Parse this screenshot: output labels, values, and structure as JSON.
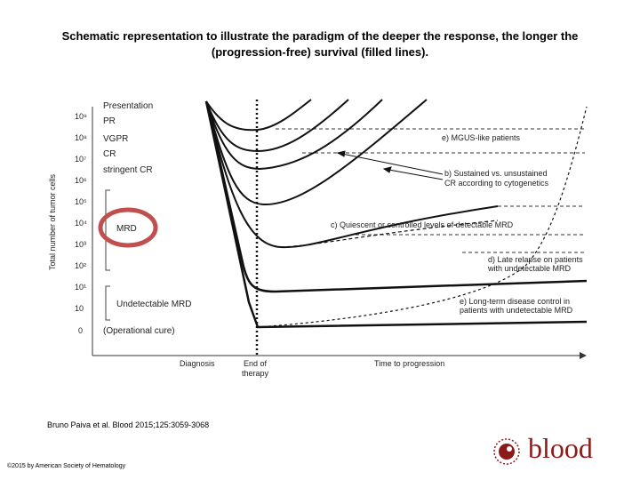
{
  "slide": {
    "title_line1": "Schematic representation to illustrate the paradigm of the deeper the response, the longer the",
    "title_line2": "(progression-free) survival (filled lines).",
    "citation": "Bruno Paiva et al. Blood 2015;125:3059-3068",
    "copyright": "©2015 by American Society of Hematology",
    "brand": "blood",
    "brand_color": "#8b1a1a"
  },
  "diagram": {
    "y_axis_label": "Total number of tumor cells",
    "y_ticks": [
      "10⁹",
      "10⁸",
      "10⁷",
      "10⁶",
      "10⁵",
      "10⁴",
      "10³",
      "10²",
      "10¹",
      "10",
      "0"
    ],
    "response_levels": [
      "Presentation",
      "PR",
      "VGPR",
      "CR",
      "stringent CR"
    ],
    "mrd_label": "MRD",
    "undetectable_label": "Undetectable MRD",
    "cure_label": "(Operational cure)",
    "x_labels": {
      "diagnosis": "Diagnosis",
      "end_line1": "End of",
      "end_line2": "therapy",
      "time": "Time to progression"
    },
    "annotations": {
      "a_line1": "e) MGUS-like patients",
      "b_line1": "b) Sustained vs. unsustained",
      "b_line2": "CR according to cytogenetics",
      "c_line1": "c) Quiescent or controlled levels of detectable MRD",
      "d_line1": "d) Late relapse on patients",
      "d_line2": "with undetectable MRD",
      "e_line1": "e) Long-term disease control in",
      "e_line2": "patients with undetectable MRD"
    },
    "highlight_color": "#c0504d"
  }
}
